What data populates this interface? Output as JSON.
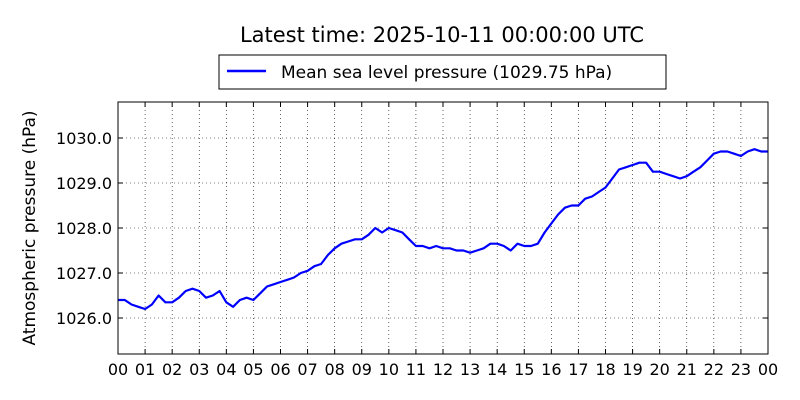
{
  "chart_data": {
    "type": "line",
    "title": "Latest time: 2025-10-11 00:00:00 UTC",
    "xlabel": "",
    "ylabel": "Atmospheric pressure (hPa)",
    "xlim": [
      0,
      24
    ],
    "ylim": [
      1025.2,
      1030.8
    ],
    "grid": true,
    "legend_placement": "top-center",
    "x_tick_labels": [
      "00",
      "01",
      "02",
      "03",
      "04",
      "05",
      "06",
      "07",
      "08",
      "09",
      "10",
      "11",
      "12",
      "13",
      "14",
      "15",
      "16",
      "17",
      "18",
      "19",
      "20",
      "21",
      "22",
      "23",
      "00"
    ],
    "y_ticks": [
      1026.0,
      1027.0,
      1028.0,
      1029.0,
      1030.0
    ],
    "y_tick_labels": [
      "1026.0",
      "1027.0",
      "1028.0",
      "1029.0",
      "1030.0"
    ],
    "series": [
      {
        "name": "Mean sea level pressure (1029.75 hPa)",
        "color": "#0000ff",
        "x": [
          0,
          0.25,
          0.5,
          0.75,
          1.0,
          1.25,
          1.5,
          1.75,
          2.0,
          2.25,
          2.5,
          2.75,
          3.0,
          3.25,
          3.5,
          3.75,
          4.0,
          4.25,
          4.5,
          4.75,
          5.0,
          5.25,
          5.5,
          5.75,
          6.0,
          6.25,
          6.5,
          6.75,
          7.0,
          7.25,
          7.5,
          7.75,
          8.0,
          8.25,
          8.5,
          8.75,
          9.0,
          9.25,
          9.5,
          9.75,
          10.0,
          10.25,
          10.5,
          10.75,
          11.0,
          11.25,
          11.5,
          11.75,
          12.0,
          12.25,
          12.5,
          12.75,
          13.0,
          13.25,
          13.5,
          13.75,
          14.0,
          14.25,
          14.5,
          14.75,
          15.0,
          15.25,
          15.5,
          15.75,
          16.0,
          16.25,
          16.5,
          16.75,
          17.0,
          17.25,
          17.5,
          17.75,
          18.0,
          18.25,
          18.5,
          18.75,
          19.0,
          19.25,
          19.5,
          19.75,
          20.0,
          20.25,
          20.5,
          20.75,
          21.0,
          21.25,
          21.5,
          21.75,
          22.0,
          22.25,
          22.5,
          22.75,
          23.0,
          23.25,
          23.5,
          23.75,
          24.0
        ],
        "y": [
          1026.4,
          1026.4,
          1026.3,
          1026.25,
          1026.2,
          1026.3,
          1026.5,
          1026.35,
          1026.35,
          1026.45,
          1026.6,
          1026.65,
          1026.6,
          1026.45,
          1026.5,
          1026.6,
          1026.35,
          1026.25,
          1026.4,
          1026.45,
          1026.4,
          1026.55,
          1026.7,
          1026.75,
          1026.8,
          1026.85,
          1026.9,
          1027.0,
          1027.05,
          1027.15,
          1027.2,
          1027.4,
          1027.55,
          1027.65,
          1027.7,
          1027.75,
          1027.75,
          1027.85,
          1028.0,
          1027.9,
          1028.0,
          1027.95,
          1027.9,
          1027.75,
          1027.6,
          1027.6,
          1027.55,
          1027.6,
          1027.55,
          1027.55,
          1027.5,
          1027.5,
          1027.45,
          1027.5,
          1027.55,
          1027.65,
          1027.65,
          1027.6,
          1027.5,
          1027.65,
          1027.6,
          1027.6,
          1027.65,
          1027.9,
          1028.1,
          1028.3,
          1028.45,
          1028.5,
          1028.5,
          1028.65,
          1028.7,
          1028.8,
          1028.9,
          1029.1,
          1029.3,
          1029.35,
          1029.4,
          1029.45,
          1029.45,
          1029.25,
          1029.25,
          1029.2,
          1029.15,
          1029.1,
          1029.15,
          1029.25,
          1029.35,
          1029.5,
          1029.65,
          1029.7,
          1029.7,
          1029.65,
          1029.6,
          1029.7,
          1029.75,
          1029.7,
          1029.7
        ]
      }
    ]
  }
}
